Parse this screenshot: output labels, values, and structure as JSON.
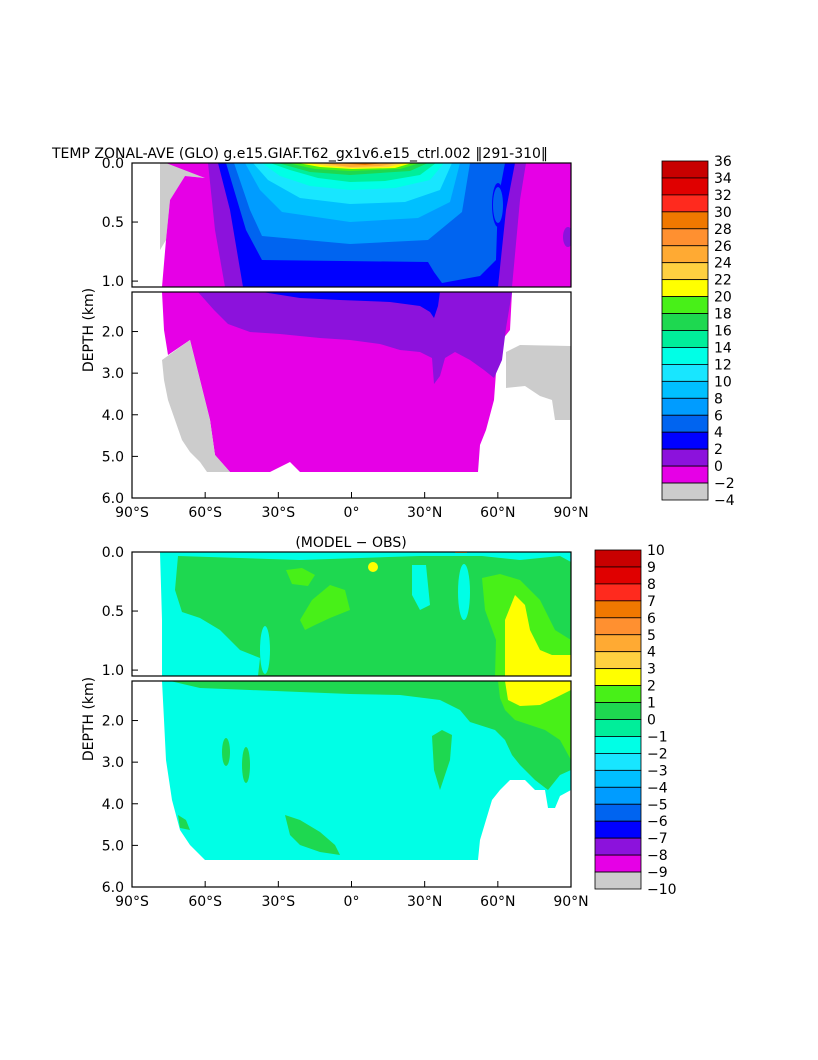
{
  "chart_data": [
    {
      "type": "heatmap",
      "title": "TEMP ZONAL-AVE (GLO) g.e15.GIAF.T62_gx1v6.e15_ctrl.002 ‖291-310‖",
      "ylabel": "DEPTH (km)",
      "xlabel": "",
      "x_ticks": [
        "90°S",
        "60°S",
        "30°S",
        "0°",
        "30°N",
        "60°N",
        "90°N"
      ],
      "y_ticks": [
        "0.0",
        "0.5",
        "1.0",
        "2.0",
        "3.0",
        "4.0",
        "5.0",
        "6.0"
      ],
      "xlim": [
        -90,
        90
      ],
      "ylim": [
        6.0,
        0.0
      ],
      "colorbar": {
        "labels": [
          "36",
          "34",
          "32",
          "30",
          "28",
          "26",
          "24",
          "22",
          "20",
          "18",
          "16",
          "14",
          "12",
          "10",
          "8",
          "6",
          "4",
          "2",
          "0",
          "−2",
          "−4"
        ],
        "colors": [
          "#c80000",
          "#e00000",
          "#ff2a1e",
          "#f07800",
          "#ff9030",
          "#ffaa33",
          "#ffd040",
          "#ffff00",
          "#48f018",
          "#1ed850",
          "#00ee9a",
          "#00ffe6",
          "#18e6ff",
          "#00c0ff",
          "#009cff",
          "#0064f0",
          "#0000ff",
          "#8c12dc",
          "#e600e6",
          "#cccccc",
          "#787878"
        ]
      }
    },
    {
      "type": "heatmap",
      "title": "(MODEL − OBS)",
      "ylabel": "DEPTH (km)",
      "xlabel": "",
      "x_ticks": [
        "90°S",
        "60°S",
        "30°S",
        "0°",
        "30°N",
        "60°N",
        "90°N"
      ],
      "y_ticks": [
        "0.0",
        "0.5",
        "1.0",
        "2.0",
        "3.0",
        "4.0",
        "5.0",
        "6.0"
      ],
      "xlim": [
        -90,
        90
      ],
      "ylim": [
        6.0,
        0.0
      ],
      "colorbar": {
        "labels": [
          "10",
          "9",
          "8",
          "7",
          "6",
          "5",
          "4",
          "3",
          "2",
          "1",
          "0",
          "−1",
          "−2",
          "−3",
          "−4",
          "−5",
          "−6",
          "−7",
          "−8",
          "−9",
          "−10"
        ],
        "colors": [
          "#c80000",
          "#e00000",
          "#ff2a1e",
          "#f07800",
          "#ff9030",
          "#ffaa33",
          "#ffd040",
          "#ffff00",
          "#48f018",
          "#1ed850",
          "#00ee9a",
          "#00ffe6",
          "#18e6ff",
          "#00c0ff",
          "#009cff",
          "#0064f0",
          "#0000ff",
          "#8c12dc",
          "#e600e6",
          "#cccccc",
          "#787878"
        ]
      }
    }
  ]
}
